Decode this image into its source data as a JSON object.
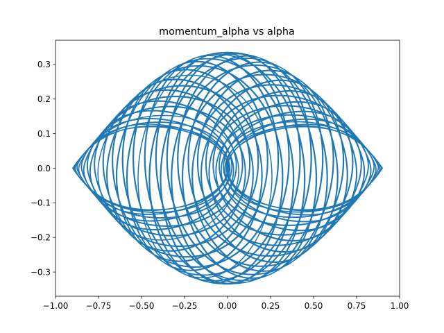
{
  "chart_data": {
    "type": "line",
    "title": "momentum_alpha vs alpha",
    "xlabel": "",
    "ylabel": "",
    "xlim": [
      -1.0,
      1.0
    ],
    "ylim": [
      -0.37,
      0.37
    ],
    "x_ticks": [
      -1.0,
      -0.75,
      -0.5,
      -0.25,
      0.0,
      0.25,
      0.5,
      0.75,
      1.0
    ],
    "x_tick_labels": [
      "−1.00",
      "−0.75",
      "−0.50",
      "−0.25",
      "0.00",
      "0.25",
      "0.50",
      "0.75",
      "1.00"
    ],
    "y_ticks": [
      -0.3,
      -0.2,
      -0.1,
      0.0,
      0.1,
      0.2,
      0.3
    ],
    "y_tick_labels": [
      "−0.3",
      "−0.2",
      "−0.1",
      "0.0",
      "0.1",
      "0.2",
      "0.3"
    ],
    "grid": false,
    "line_color": "#1f77b4",
    "series": [
      {
        "alpha_envelope": {
          "min": -0.9,
          "max": 0.9
        },
        "momentum_envelope": {
          "min": -0.335,
          "max": 0.335
        },
        "inner_band": {
          "min": -0.12,
          "max": 0.12
        },
        "max_momentum_at_alpha": [
          [
            -0.9,
            0.0
          ],
          [
            -0.85,
            0.17
          ],
          [
            -0.8,
            0.22
          ],
          [
            -0.7,
            0.26
          ],
          [
            -0.6,
            0.29
          ],
          [
            -0.5,
            0.305
          ],
          [
            -0.3,
            0.325
          ],
          [
            -0.1,
            0.335
          ],
          [
            0.0,
            0.33
          ],
          [
            0.1,
            0.335
          ],
          [
            0.3,
            0.325
          ],
          [
            0.5,
            0.305
          ],
          [
            0.6,
            0.29
          ],
          [
            0.7,
            0.26
          ],
          [
            0.8,
            0.22
          ],
          [
            0.85,
            0.17
          ],
          [
            0.9,
            0.0
          ]
        ]
      }
    ]
  }
}
